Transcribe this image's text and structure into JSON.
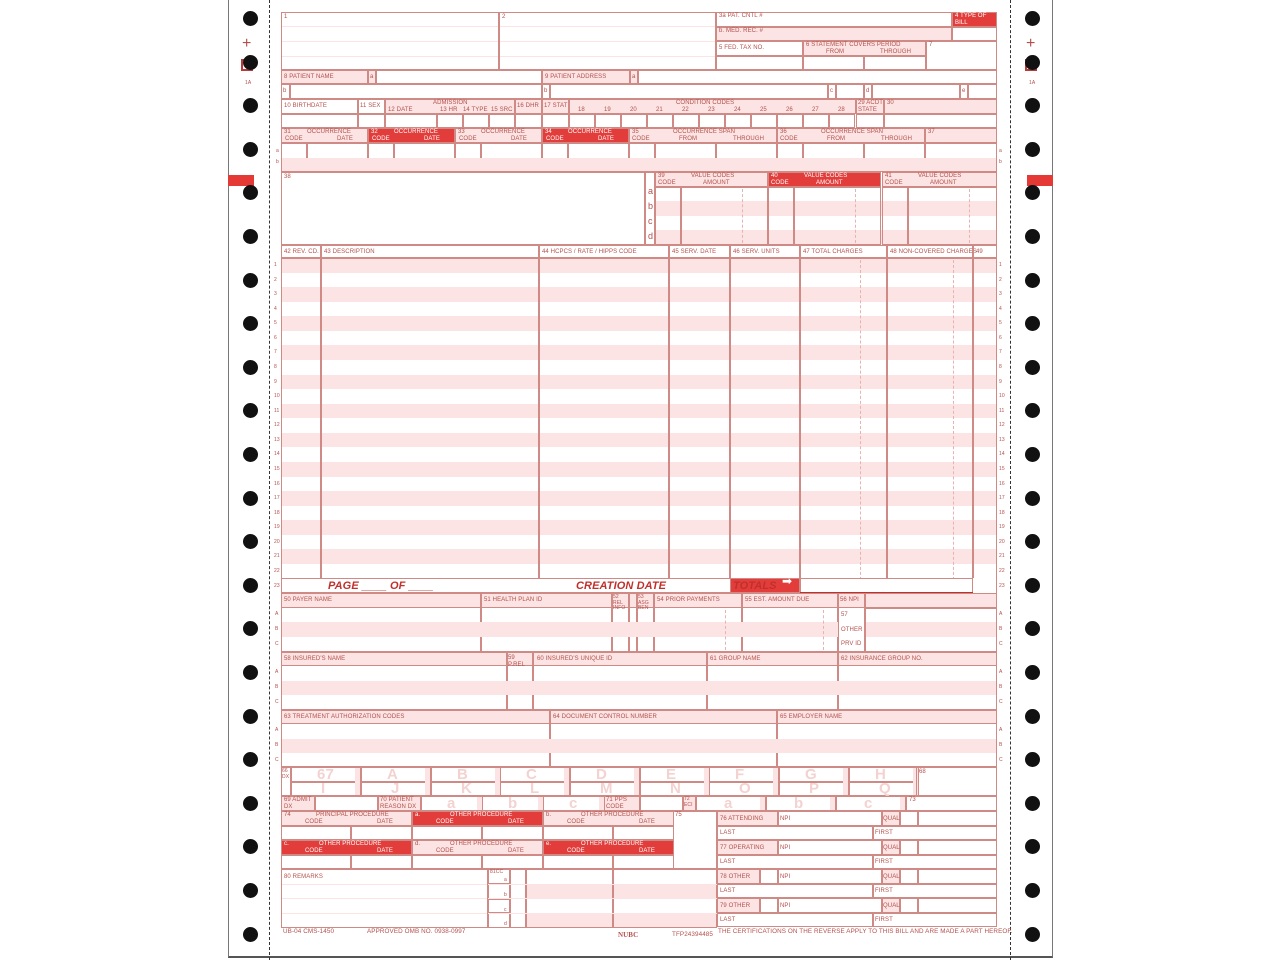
{
  "colors": {
    "line": "#cf8a86",
    "pink": "#fbe4e3",
    "red": "#e23d3b",
    "text": "#b4504c"
  },
  "margin": {
    "mark": "1A"
  },
  "top": {
    "f1": "1",
    "f2": "2",
    "f3a": "3a PAT. CNTL #",
    "f3b": "b. MED. REC. #",
    "f4": "4   TYPE OF BILL",
    "f5": "5 FED. TAX NO.",
    "f6": "6      STATEMENT COVERS PERIOD",
    "f6_from": "FROM",
    "f6_through": "THROUGH",
    "f7": "7"
  },
  "patient": {
    "f8": "8 PATIENT  NAME",
    "f8a": "a",
    "f8b": "b",
    "f9": "9 PATIENT  ADDRESS",
    "f9a": "a",
    "f9b": "b",
    "f9c": "c",
    "f9d": "d",
    "f9e": "e"
  },
  "admission": {
    "f10": "10 BIRTHDATE",
    "f11": "11 SEX",
    "title": "ADMISSION",
    "f12": "12      DATE",
    "f13": "13 HR",
    "f14": "14 TYPE",
    "f15": "15 SRC",
    "f16": "16 DHR",
    "f17": "17 STAT",
    "cond_title": "CONDITION CODES",
    "cond": [
      "18",
      "19",
      "20",
      "21",
      "22",
      "23",
      "24",
      "25",
      "26",
      "27",
      "28"
    ],
    "f29": "29 ACDT STATE",
    "f30": "30"
  },
  "occurrence": [
    {
      "num": "31",
      "title": "OCCURRENCE",
      "code": "CODE",
      "date": "DATE"
    },
    {
      "num": "32",
      "title": "OCCURRENCE",
      "code": "CODE",
      "date": "DATE"
    },
    {
      "num": "33",
      "title": "OCCURRENCE",
      "code": "CODE",
      "date": "DATE"
    },
    {
      "num": "34",
      "title": "OCCURRENCE",
      "code": "CODE",
      "date": "DATE"
    }
  ],
  "span": [
    {
      "num": "35",
      "title": "OCCURRENCE SPAN",
      "code": "CODE",
      "from": "FROM",
      "through": "THROUGH"
    },
    {
      "num": "36",
      "title": "OCCURRENCE SPAN",
      "code": "CODE",
      "from": "FROM",
      "through": "THROUGH"
    }
  ],
  "f37": "37",
  "rows_ab": [
    "a",
    "b"
  ],
  "f38": "38",
  "value_codes": [
    {
      "num": "39",
      "title": "VALUE CODES",
      "code": "CODE",
      "amount": "AMOUNT"
    },
    {
      "num": "40",
      "title": "VALUE CODES",
      "code": "CODE",
      "amount": "AMOUNT"
    },
    {
      "num": "41",
      "title": "VALUE CODES",
      "code": "CODE",
      "amount": "AMOUNT"
    }
  ],
  "vc_rows": [
    "a",
    "b",
    "c",
    "d"
  ],
  "lines": {
    "headers": [
      "42 REV. CD.",
      "43 DESCRIPTION",
      "44 HCPCS / RATE / HIPPS CODE",
      "45 SERV. DATE",
      "46 SERV. UNITS",
      "47 TOTAL CHARGES",
      "48 NON-COVERED CHARGES",
      "49"
    ],
    "numbers": [
      "1",
      "2",
      "3",
      "4",
      "5",
      "6",
      "7",
      "8",
      "9",
      "10",
      "11",
      "12",
      "13",
      "14",
      "15",
      "16",
      "17",
      "18",
      "19",
      "20",
      "21",
      "22",
      "23"
    ],
    "page": "PAGE ____  OF ____",
    "creation_date": "CREATION DATE",
    "totals": "TOTALS"
  },
  "payer": {
    "f50": "50 PAYER  NAME",
    "f51": "51 HEALTH PLAN ID",
    "f52": "52 REL INFO",
    "f53": "53 ASG BEN",
    "f54": "54 PRIOR PAYMENTS",
    "f55": "55 EST. AMOUNT DUE",
    "f56": "56 NPI",
    "f57": [
      "57",
      "OTHER",
      "PRV ID"
    ],
    "rows": [
      "A",
      "B",
      "C"
    ]
  },
  "insured": {
    "f58": "58 INSURED'S NAME",
    "f59": "59 P.REL",
    "f60": "60 INSURED'S UNIQUE ID",
    "f61": "61 GROUP NAME",
    "f62": "62 INSURANCE GROUP NO."
  },
  "auth": {
    "f63": "63 TREATMENT AUTHORIZATION CODES",
    "f64": "64 DOCUMENT CONTROL NUMBER",
    "f65": "65 EMPLOYER NAME"
  },
  "dx": {
    "f66": "66 DX",
    "row1": [
      "67",
      "A",
      "B",
      "C",
      "D",
      "E",
      "F",
      "G",
      "H"
    ],
    "row2": [
      "I",
      "J",
      "K",
      "L",
      "M",
      "N",
      "O",
      "P",
      "Q"
    ],
    "f68": "68"
  },
  "dx2": {
    "f69": "69 ADMIT DX",
    "f70": "70 PATIENT REASON DX",
    "reason": [
      "a",
      "b",
      "c"
    ],
    "f71": "71 PPS CODE",
    "f72": "72 ECI",
    "eci": [
      "a",
      "b",
      "c"
    ],
    "f73": "73"
  },
  "procedures": [
    {
      "letter": "74",
      "title": "PRINCIPAL PROCEDURE",
      "code": "CODE",
      "date": "DATE"
    },
    {
      "letter": "a.",
      "title": "OTHER PROCEDURE",
      "code": "CODE",
      "date": "DATE"
    },
    {
      "letter": "b.",
      "title": "OTHER PROCEDURE",
      "code": "CODE",
      "date": "DATE"
    },
    {
      "letter": "c.",
      "title": "OTHER PROCEDURE",
      "code": "CODE",
      "date": "DATE"
    },
    {
      "letter": "d.",
      "title": "OTHER PROCEDURE",
      "code": "CODE",
      "date": "DATE"
    },
    {
      "letter": "e.",
      "title": "OTHER PROCEDURE",
      "code": "CODE",
      "date": "DATE"
    }
  ],
  "f75": "75",
  "physicians": [
    {
      "label": "76 ATTENDING",
      "npi": "NPI",
      "qual": "QUAL",
      "last": "LAST",
      "first": "FIRST"
    },
    {
      "label": "77 OPERATING",
      "npi": "NPI",
      "qual": "QUAL",
      "last": "LAST",
      "first": "FIRST"
    },
    {
      "label": "78 OTHER",
      "npi": "NPI",
      "qual": "QUAL",
      "last": "LAST",
      "first": "FIRST"
    },
    {
      "label": "79 OTHER",
      "npi": "NPI",
      "qual": "QUAL",
      "last": "LAST",
      "first": "FIRST"
    }
  ],
  "f80": "80 REMARKS",
  "f81": "81CC",
  "cc_rows": [
    "a",
    "b",
    "c",
    "d"
  ],
  "footer": {
    "form_id": "UB-04 CMS-1450",
    "omb": "APPROVED OMB NO. 0938-0997",
    "nubc": "NUBC",
    "tfp": "TFP24394485",
    "cert": "THE CERTIFICATIONS ON THE REVERSE APPLY TO THIS BILL AND ARE MADE A PART HEREOF."
  }
}
